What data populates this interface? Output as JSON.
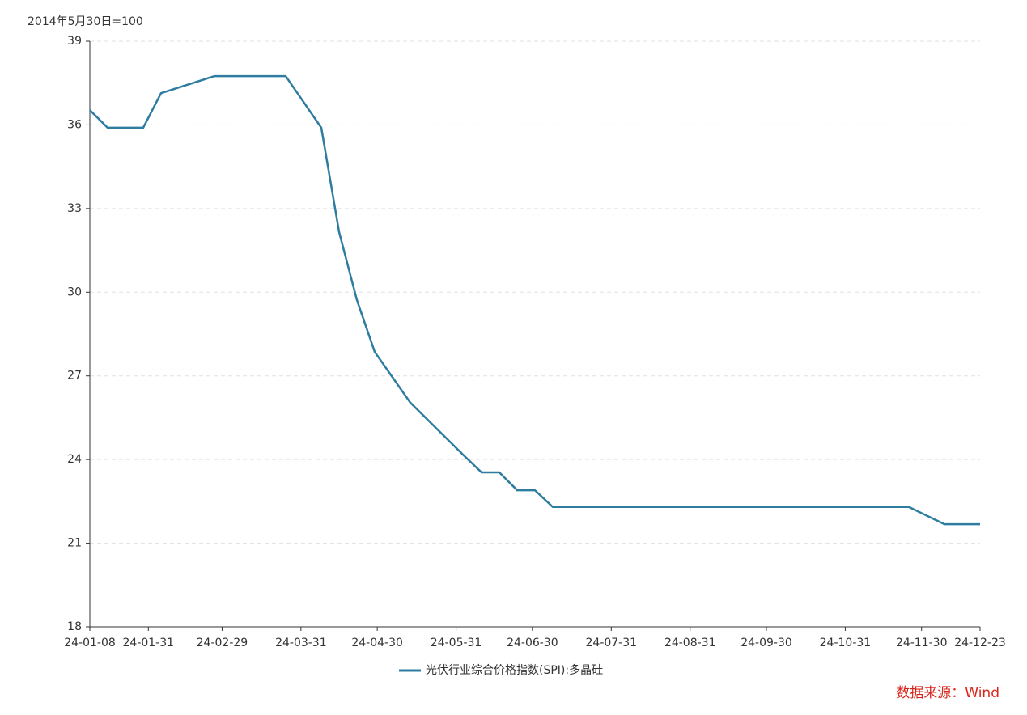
{
  "chart_data": {
    "type": "line",
    "subtitle": "2014年5月30日=100",
    "source": "数据来源：Wind",
    "x": [
      "24-01-08",
      "24-01-15",
      "24-01-29",
      "24-02-05",
      "24-02-26",
      "24-03-25",
      "24-04-08",
      "24-04-15",
      "24-04-22",
      "24-04-29",
      "24-05-13",
      "24-06-03",
      "24-06-10",
      "24-06-17",
      "24-06-24",
      "24-07-01",
      "24-07-08",
      "24-11-25",
      "24-12-09",
      "24-12-23"
    ],
    "series": [
      {
        "name": "光伏行业综合价格指数(SPI):多晶硅",
        "color": "#2e7ca0",
        "values": [
          36.53,
          35.9,
          35.9,
          37.14,
          37.75,
          37.75,
          35.9,
          32.16,
          29.72,
          27.86,
          26.04,
          24.15,
          23.54,
          23.54,
          22.9,
          22.9,
          22.3,
          22.3,
          21.68,
          21.68
        ]
      }
    ],
    "xlim": [
      "24-01-08",
      "24-12-23"
    ],
    "xticks": [
      "24-01-08",
      "24-01-31",
      "24-02-29",
      "24-03-31",
      "24-04-30",
      "24-05-31",
      "24-06-30",
      "24-07-31",
      "24-08-31",
      "24-09-30",
      "24-10-31",
      "24-11-30",
      "24-12-23"
    ],
    "ylim": [
      18,
      39
    ],
    "yticks": [
      18,
      21,
      24,
      27,
      30,
      33,
      36,
      39
    ],
    "grid": true,
    "legend": "bottom"
  }
}
